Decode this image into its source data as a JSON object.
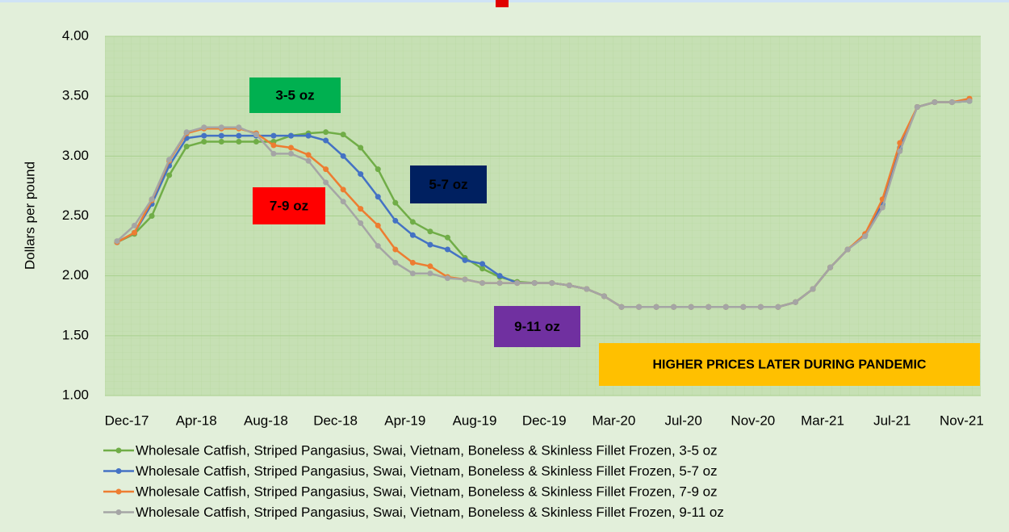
{
  "chart_data": {
    "type": "line",
    "y_label": "Dollars per pound",
    "categories": [
      "Dec-17",
      null,
      null,
      null,
      "Apr-18",
      null,
      null,
      null,
      "Aug-18",
      null,
      null,
      null,
      "Dec-18",
      null,
      null,
      null,
      "Apr-19",
      null,
      null,
      null,
      "Aug-19",
      null,
      null,
      null,
      "Dec-19",
      null,
      null,
      null,
      "Mar-20",
      null,
      null,
      null,
      "Jul-20",
      null,
      null,
      null,
      "Nov-20",
      null,
      null,
      null,
      "Mar-21",
      null,
      null,
      null,
      "Jul-21",
      null,
      null,
      null,
      "Nov-21",
      null
    ],
    "ylim": [
      1,
      4
    ],
    "yticks": [
      {
        "value": 1,
        "label": "1.00"
      },
      {
        "value": 1.5,
        "label": "1.50"
      },
      {
        "value": 2,
        "label": "2.00"
      },
      {
        "value": 2.5,
        "label": "2.50"
      },
      {
        "value": 3,
        "label": "3.00"
      },
      {
        "value": 3.5,
        "label": "3.50"
      },
      {
        "value": 4,
        "label": "4.00"
      }
    ],
    "grid": true,
    "legend": "bottom",
    "series": [
      {
        "name": "Wholesale Catfish, Striped Pangasius, Swai, Vietnam, Boneless & Skinless Fillet Frozen, 3-5 oz",
        "color": "#70ad47",
        "values": [
          2.28,
          2.35,
          2.5,
          2.84,
          3.08,
          3.12,
          3.12,
          3.12,
          3.12,
          3.12,
          3.17,
          3.19,
          3.2,
          3.18,
          3.07,
          2.89,
          2.61,
          2.45,
          2.37,
          2.32,
          2.15,
          2.06,
          1.99,
          1.95,
          1.94,
          1.94,
          1.92,
          1.89,
          1.83,
          1.74,
          1.74,
          1.74,
          1.74,
          1.74,
          1.74,
          1.74,
          1.74,
          1.74,
          1.74,
          1.78,
          1.89,
          2.07,
          2.22,
          2.34,
          2.58,
          3.05,
          3.41,
          3.45,
          3.45,
          3.46
        ]
      },
      {
        "name": "Wholesale Catfish, Striped Pangasius, Swai, Vietnam, Boneless & Skinless Fillet Frozen, 5-7 oz",
        "color": "#4472c4",
        "values": [
          2.28,
          2.36,
          2.6,
          2.92,
          3.15,
          3.17,
          3.17,
          3.17,
          3.17,
          3.17,
          3.17,
          3.17,
          3.13,
          3.0,
          2.85,
          2.66,
          2.46,
          2.34,
          2.26,
          2.22,
          2.13,
          2.1,
          2.0,
          1.94,
          1.94,
          1.94,
          1.92,
          1.89,
          1.83,
          1.74,
          1.74,
          1.74,
          1.74,
          1.74,
          1.74,
          1.74,
          1.74,
          1.74,
          1.74,
          1.78,
          1.89,
          2.07,
          2.22,
          2.34,
          2.6,
          3.07,
          3.41,
          3.45,
          3.45,
          3.46
        ]
      },
      {
        "name": "Wholesale Catfish, Striped Pangasius, Swai, Vietnam, Boneless & Skinless Fillet Frozen, 7-9 oz",
        "color": "#ed7d31",
        "values": [
          2.28,
          2.36,
          2.63,
          2.96,
          3.19,
          3.23,
          3.23,
          3.23,
          3.19,
          3.09,
          3.07,
          3.01,
          2.89,
          2.72,
          2.56,
          2.42,
          2.22,
          2.11,
          2.08,
          1.99,
          1.97,
          1.94,
          1.94,
          1.94,
          1.94,
          1.94,
          1.92,
          1.89,
          1.83,
          1.74,
          1.74,
          1.74,
          1.74,
          1.74,
          1.74,
          1.74,
          1.74,
          1.74,
          1.74,
          1.78,
          1.89,
          2.07,
          2.22,
          2.35,
          2.64,
          3.11,
          3.41,
          3.45,
          3.45,
          3.48
        ]
      },
      {
        "name": "Wholesale Catfish, Striped Pangasius, Swai, Vietnam, Boneless & Skinless Fillet Frozen, 9-11 oz",
        "color": "#a5a5a5",
        "values": [
          2.29,
          2.42,
          2.64,
          2.97,
          3.2,
          3.24,
          3.24,
          3.24,
          3.18,
          3.02,
          3.02,
          2.96,
          2.78,
          2.62,
          2.44,
          2.25,
          2.11,
          2.02,
          2.02,
          1.98,
          1.97,
          1.94,
          1.94,
          1.94,
          1.94,
          1.94,
          1.92,
          1.89,
          1.83,
          1.74,
          1.74,
          1.74,
          1.74,
          1.74,
          1.74,
          1.74,
          1.74,
          1.74,
          1.74,
          1.78,
          1.89,
          2.07,
          2.22,
          2.33,
          2.57,
          3.04,
          3.41,
          3.45,
          3.45,
          3.46
        ]
      }
    ],
    "annotations": [
      {
        "text": "3-5 oz",
        "background": "#00b050",
        "color": "#000000"
      },
      {
        "text": "5-7 oz",
        "background": "#002060",
        "color": "#ffffff"
      },
      {
        "text": "7-9 oz",
        "background": "#ff0000",
        "color": "#000000"
      },
      {
        "text": "9-11 oz",
        "background": "#7030a0",
        "color": "#ffffff"
      },
      {
        "text": "HIGHER PRICES LATER DURING PANDEMIC",
        "background": "#ffc000",
        "color": "#ff0000"
      }
    ]
  }
}
